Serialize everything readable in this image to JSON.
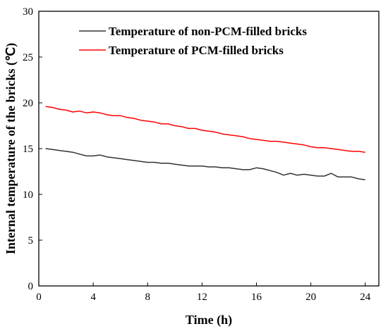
{
  "chart_data": {
    "type": "line",
    "xlabel": "Time (h)",
    "ylabel": "Internal temperature of the bricks (℃)",
    "xlim": [
      0,
      25
    ],
    "ylim": [
      0,
      30
    ],
    "x_ticks": [
      0,
      4,
      8,
      12,
      16,
      20,
      24
    ],
    "y_ticks": [
      0,
      5,
      10,
      15,
      20,
      25,
      30
    ],
    "grid": false,
    "legend_position": "top-right",
    "series": [
      {
        "name": "Temperature of non-PCM-filled bricks",
        "color": "#333333",
        "x": [
          0.5,
          1,
          1.5,
          2,
          2.5,
          3,
          3.5,
          4,
          4.5,
          5,
          5.5,
          6,
          6.5,
          7,
          7.5,
          8,
          8.5,
          9,
          9.5,
          10,
          10.5,
          11,
          11.5,
          12,
          12.5,
          13,
          13.5,
          14,
          14.5,
          15,
          15.5,
          16,
          16.5,
          17,
          17.5,
          18,
          18.5,
          19,
          19.5,
          20,
          20.5,
          21,
          21.5,
          22,
          22.5,
          23,
          23.5,
          24
        ],
        "y": [
          15.0,
          14.9,
          14.8,
          14.7,
          14.6,
          14.4,
          14.2,
          14.2,
          14.3,
          14.1,
          14.0,
          13.9,
          13.8,
          13.7,
          13.6,
          13.5,
          13.5,
          13.4,
          13.4,
          13.3,
          13.2,
          13.1,
          13.1,
          13.1,
          13.0,
          13.0,
          12.9,
          12.9,
          12.8,
          12.7,
          12.7,
          12.9,
          12.8,
          12.6,
          12.4,
          12.1,
          12.3,
          12.1,
          12.2,
          12.1,
          12.0,
          12.0,
          12.3,
          11.9,
          11.9,
          11.9,
          11.7,
          11.6
        ]
      },
      {
        "name": "Temperature of PCM-filled bricks",
        "color": "#ff0000",
        "x": [
          0.5,
          1,
          1.5,
          2,
          2.5,
          3,
          3.5,
          4,
          4.5,
          5,
          5.5,
          6,
          6.5,
          7,
          7.5,
          8,
          8.5,
          9,
          9.5,
          10,
          10.5,
          11,
          11.5,
          12,
          12.5,
          13,
          13.5,
          14,
          14.5,
          15,
          15.5,
          16,
          16.5,
          17,
          17.5,
          18,
          18.5,
          19,
          19.5,
          20,
          20.5,
          21,
          21.5,
          22,
          22.5,
          23,
          23.5,
          24
        ],
        "y": [
          19.6,
          19.5,
          19.3,
          19.2,
          19.0,
          19.1,
          18.9,
          19.0,
          18.9,
          18.7,
          18.6,
          18.6,
          18.4,
          18.3,
          18.1,
          18.0,
          17.9,
          17.7,
          17.7,
          17.5,
          17.4,
          17.2,
          17.2,
          17.0,
          16.9,
          16.8,
          16.6,
          16.5,
          16.4,
          16.3,
          16.1,
          16.0,
          15.9,
          15.8,
          15.8,
          15.7,
          15.6,
          15.5,
          15.4,
          15.2,
          15.1,
          15.1,
          15.0,
          14.9,
          14.8,
          14.7,
          14.7,
          14.6
        ]
      }
    ]
  }
}
